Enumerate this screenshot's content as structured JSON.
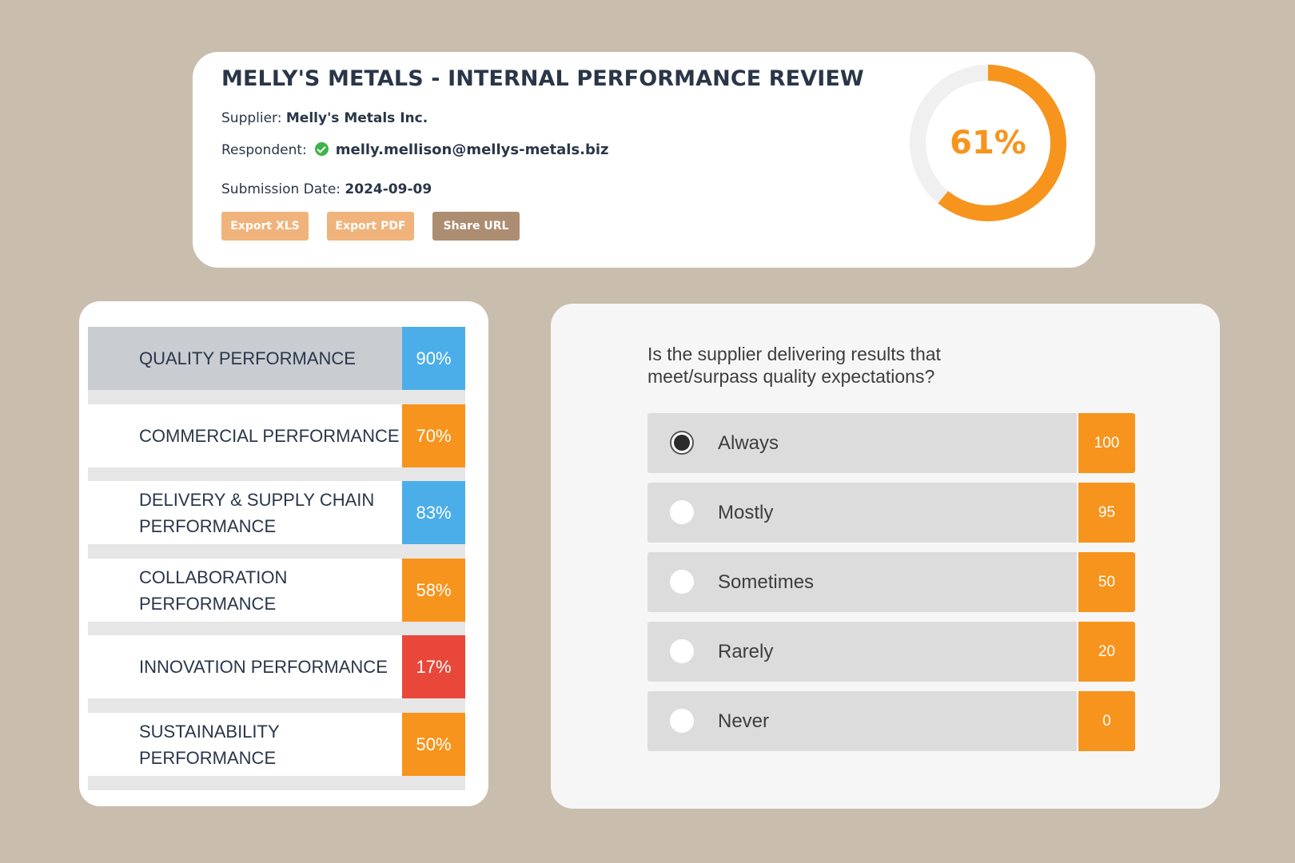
{
  "header": {
    "title": "MELLY'S METALS - INTERNAL PERFORMANCE REVIEW",
    "supplier_label": "Supplier:",
    "supplier_value": "Melly's Metals Inc.",
    "respondent_label": "Respondent:",
    "respondent_email": "melly.mellison@mellys-metals.biz",
    "respondent_status_icon": "check-circle-icon",
    "date_label": "Submission Date:",
    "date_value": "2024-09-09",
    "buttons": {
      "export_xls": "Export XLS",
      "export_pdf": "Export PDF",
      "share_url": "Share URL"
    },
    "score": {
      "label": "61%",
      "value": 0.61,
      "color": "#f7941d",
      "track_color": "#f0f0f0"
    }
  },
  "categories": [
    {
      "label": "QUALITY PERFORMANCE",
      "score": "90%",
      "color": "#4baee8",
      "selected": true
    },
    {
      "label": "COMMERCIAL PERFORMANCE",
      "score": "70%",
      "color": "#f7941d",
      "selected": false
    },
    {
      "label": "DELIVERY & SUPPLY CHAIN PERFORMANCE",
      "score": "83%",
      "color": "#4baee8",
      "selected": false
    },
    {
      "label": "COLLABORATION PERFORMANCE",
      "score": "58%",
      "color": "#f7941d",
      "selected": false
    },
    {
      "label": "INNOVATION PERFORMANCE",
      "score": "17%",
      "color": "#e8473a",
      "selected": false
    },
    {
      "label": "SUSTAINABILITY PERFORMANCE",
      "score": "50%",
      "color": "#f7941d",
      "selected": false
    }
  ],
  "question": {
    "text": "Is the supplier delivering results that meet/surpass quality expectations?",
    "options": [
      {
        "label": "Always",
        "value": "100",
        "checked": true
      },
      {
        "label": "Mostly",
        "value": "95",
        "checked": false
      },
      {
        "label": "Sometimes",
        "value": "50",
        "checked": false
      },
      {
        "label": "Rarely",
        "value": "20",
        "checked": false
      },
      {
        "label": "Never",
        "value": "0",
        "checked": false
      }
    ]
  },
  "colors": {
    "background": "#c9bdae",
    "accent_orange": "#f7941d",
    "accent_blue": "#4baee8",
    "accent_red": "#e8473a",
    "button_light": "#f0b37b",
    "button_dark": "#ad8d71"
  }
}
